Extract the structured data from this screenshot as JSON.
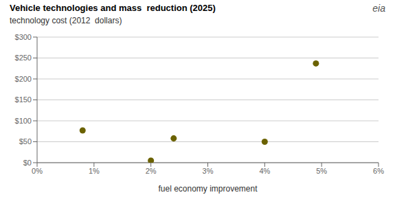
{
  "chart_data": {
    "type": "scatter",
    "title": "Vehicle technologies and mass  reduction (2025)",
    "subtitle": "technology cost (2012  dollars)",
    "xlabel": "fuel economy improvement",
    "annotations": [
      "eia"
    ],
    "x": [
      0.008,
      0.02,
      0.024,
      0.04,
      0.049
    ],
    "values": [
      77,
      5,
      58,
      50,
      237
    ],
    "color": "#6b6200",
    "xlim": [
      0.0,
      0.06
    ],
    "ylim": [
      0,
      300
    ],
    "xticks": [
      {
        "value": 0.0,
        "label": "0%"
      },
      {
        "value": 0.01,
        "label": "1%"
      },
      {
        "value": 0.02,
        "label": "2%"
      },
      {
        "value": 0.03,
        "label": "3%"
      },
      {
        "value": 0.04,
        "label": "4%"
      },
      {
        "value": 0.05,
        "label": "5%"
      },
      {
        "value": 0.06,
        "label": "6%"
      }
    ],
    "yticks": [
      {
        "value": 0,
        "label": "$0"
      },
      {
        "value": 50,
        "label": "$50"
      },
      {
        "value": 100,
        "label": "$100"
      },
      {
        "value": 150,
        "label": "$150"
      },
      {
        "value": 200,
        "label": "$200"
      },
      {
        "value": 250,
        "label": "$250"
      },
      {
        "value": 300,
        "label": "$300"
      }
    ],
    "grid": true
  }
}
